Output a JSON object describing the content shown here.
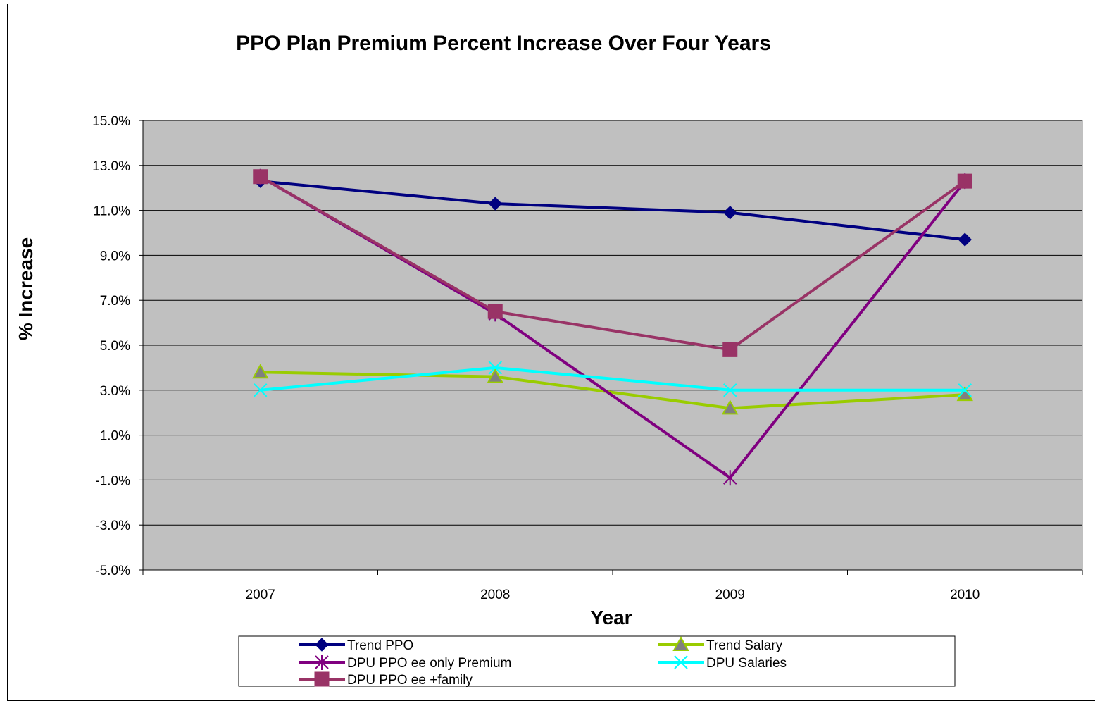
{
  "chart_data": {
    "type": "line",
    "title": "PPO Plan Premium Percent Increase Over Four Years",
    "xlabel": "Year",
    "ylabel": "% Increase",
    "categories": [
      "2007",
      "2008",
      "2009",
      "2010"
    ],
    "ylim": [
      -5.0,
      15.0
    ],
    "yticks": [
      "15.0%",
      "13.0%",
      "11.0%",
      "9.0%",
      "7.0%",
      "5.0%",
      "3.0%",
      "1.0%",
      "-1.0%",
      "-3.0%",
      "-5.0%"
    ],
    "grid": true,
    "legend_position": "bottom",
    "plot_background": "#c0c0c0",
    "series": [
      {
        "name": "Trend PPO",
        "values": [
          12.3,
          11.3,
          10.9,
          9.7
        ],
        "color": "#000080",
        "marker": "diamond"
      },
      {
        "name": "Trend Salary",
        "values": [
          3.8,
          3.6,
          2.2,
          2.8
        ],
        "color": "#99cc00",
        "marker": "triangle"
      },
      {
        "name": "DPU PPO ee only Premium",
        "values": [
          12.5,
          6.4,
          -0.9,
          12.3
        ],
        "color": "#800080",
        "marker": "star"
      },
      {
        "name": "DPU Salaries",
        "values": [
          3.0,
          4.0,
          3.0,
          3.0
        ],
        "color": "#00ffff",
        "marker": "x"
      },
      {
        "name": "DPU PPO ee +family",
        "values": [
          12.5,
          6.5,
          4.8,
          12.3
        ],
        "color": "#993366",
        "marker": "square"
      }
    ]
  }
}
